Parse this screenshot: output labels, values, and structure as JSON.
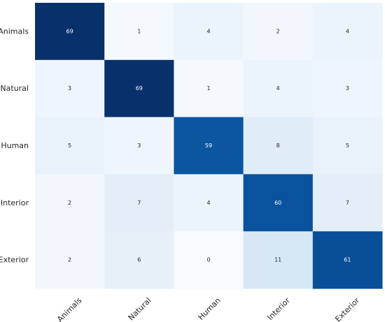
{
  "chart_data": {
    "type": "heatmap",
    "title": "",
    "xlabel": "",
    "ylabel": "",
    "rows": [
      "Animals",
      "Natural",
      "Human",
      "Interior",
      "Exterior"
    ],
    "columns": [
      "Animals",
      "Natural",
      "Human",
      "Interior",
      "Exterior"
    ],
    "values": [
      [
        69,
        1,
        4,
        2,
        4
      ],
      [
        3,
        69,
        1,
        4,
        3
      ],
      [
        5,
        3,
        59,
        8,
        5
      ],
      [
        2,
        7,
        4,
        60,
        7
      ],
      [
        2,
        6,
        0,
        11,
        61
      ]
    ],
    "value_range": [
      0,
      69
    ],
    "colormap": "Blues",
    "colorbar": false,
    "grid": false,
    "annotations": true,
    "colors": {
      "low": "#f7fbff",
      "high": "#08306b",
      "text_dark": "#262626",
      "text_light": "#ffffff"
    }
  }
}
